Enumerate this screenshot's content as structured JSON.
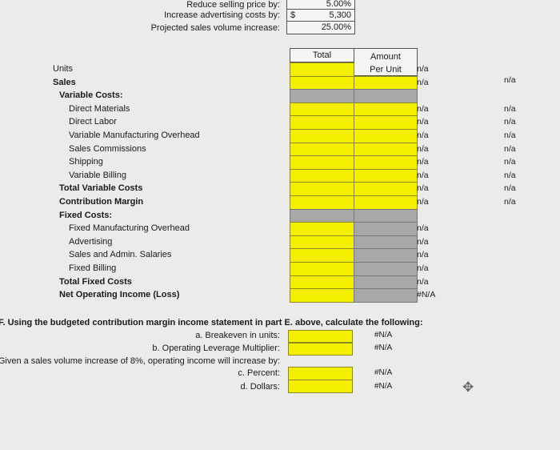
{
  "inputs": {
    "reduce_price_label": "Reduce selling price by:",
    "reduce_price_value": "5.00%",
    "advertising_label": "Increase advertising costs by:",
    "advertising_currency": "$",
    "advertising_value": "5,300",
    "volume_label": "Projected sales volume increase:",
    "volume_value": "25.00%"
  },
  "table": {
    "col_total": "Total",
    "col_amount": "Amount",
    "col_per_unit": "Per Unit",
    "rows": [
      {
        "label": "Units",
        "indent": 0,
        "bold": false,
        "total": "y",
        "per": "hdr",
        "check": "n/a",
        "check2": ""
      },
      {
        "label": "Sales",
        "indent": 0,
        "bold": true,
        "total": "y",
        "per": "y",
        "check": "n/a",
        "check2": "n/a"
      },
      {
        "label": "Variable Costs:",
        "indent": 1,
        "bold": true,
        "total": "g",
        "per": "g",
        "check": "",
        "check2": ""
      },
      {
        "label": "Direct Materials",
        "indent": 2,
        "bold": false,
        "total": "y",
        "per": "y",
        "check": "n/a",
        "check2": "n/a"
      },
      {
        "label": "Direct Labor",
        "indent": 2,
        "bold": false,
        "total": "y",
        "per": "y",
        "check": "n/a",
        "check2": "n/a"
      },
      {
        "label": "Variable Manufacturing Overhead",
        "indent": 2,
        "bold": false,
        "total": "y",
        "per": "y",
        "check": "n/a",
        "check2": "n/a"
      },
      {
        "label": "Sales Commissions",
        "indent": 2,
        "bold": false,
        "total": "y",
        "per": "y",
        "check": "n/a",
        "check2": "n/a"
      },
      {
        "label": "Shipping",
        "indent": 2,
        "bold": false,
        "total": "y",
        "per": "y",
        "check": "n/a",
        "check2": "n/a"
      },
      {
        "label": "Variable Billing",
        "indent": 2,
        "bold": false,
        "total": "y",
        "per": "y",
        "check": "n/a",
        "check2": "n/a"
      },
      {
        "label": "Total Variable Costs",
        "indent": 1,
        "bold": true,
        "total": "y",
        "per": "y",
        "check": "n/a",
        "check2": "n/a"
      },
      {
        "label": "Contribution Margin",
        "indent": 1,
        "bold": true,
        "total": "y",
        "per": "y",
        "check": "n/a",
        "check2": "n/a"
      },
      {
        "label": "Fixed Costs:",
        "indent": 1,
        "bold": true,
        "total": "g",
        "per": "g",
        "check": "",
        "check2": ""
      },
      {
        "label": "Fixed Manufacturing Overhead",
        "indent": 2,
        "bold": false,
        "total": "y",
        "per": "g",
        "check": "n/a",
        "check2": ""
      },
      {
        "label": "Advertising",
        "indent": 2,
        "bold": false,
        "total": "y",
        "per": "g",
        "check": "n/a",
        "check2": ""
      },
      {
        "label": "Sales and Admin. Salaries",
        "indent": 2,
        "bold": false,
        "total": "y",
        "per": "g",
        "check": "n/a",
        "check2": ""
      },
      {
        "label": "Fixed Billing",
        "indent": 2,
        "bold": false,
        "total": "y",
        "per": "g",
        "check": "n/a",
        "check2": ""
      },
      {
        "label": "Total Fixed Costs",
        "indent": 1,
        "bold": true,
        "total": "y",
        "per": "g",
        "check": "n/a",
        "check2": ""
      },
      {
        "label": "Net Operating Income (Loss)",
        "indent": 1,
        "bold": true,
        "total": "y",
        "per": "g",
        "check": "#N/A",
        "check2": ""
      }
    ]
  },
  "part_f": {
    "heading": "F. Using the budgeted contribution margin income statement in part E. above, calculate the following:",
    "a_label": "a. Breakeven in units:",
    "a_check": "#N/A",
    "b_label": "b. Operating Leverage Multiplier:",
    "b_check": "#N/A",
    "given": "Given a sales volume increase of 8%, operating income will increase by:",
    "c_label": "c. Percent:",
    "c_check": "#N/A",
    "d_label": "d. Dollars:",
    "d_check": "#N/A"
  },
  "colors": {
    "input_yellow": "#f4ee00",
    "locked_gray": "#a8a8a6"
  }
}
